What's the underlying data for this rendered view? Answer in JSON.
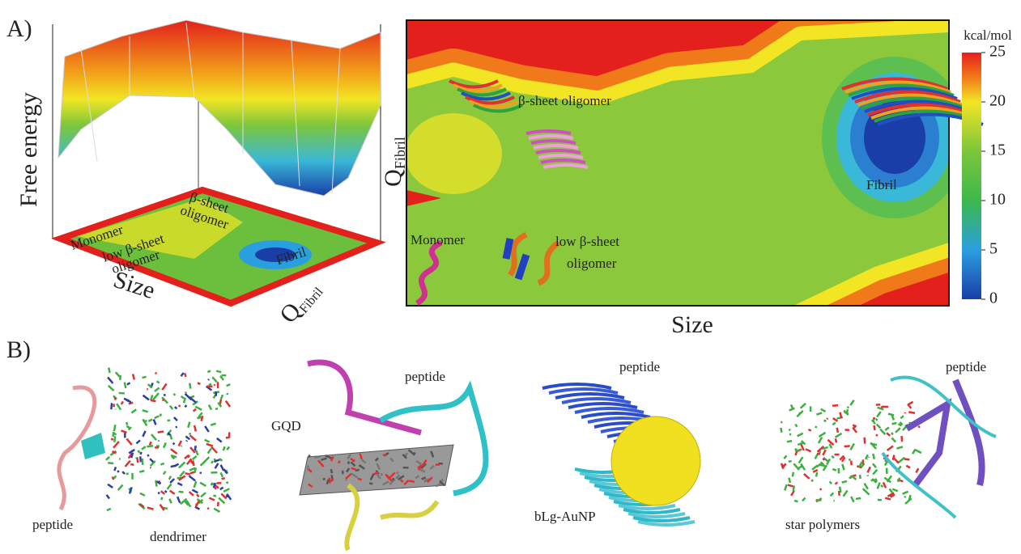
{
  "panel_a": {
    "label": "A)",
    "surface_plot": {
      "y_label": "Free energy",
      "x_label": "Size",
      "z_label": {
        "main": "Q",
        "sub": "Fibril"
      },
      "annotations": [
        "Monomer",
        "low β-sheet",
        "oligomer",
        "β-sheet",
        "oligomer",
        "Fibril"
      ]
    },
    "contour_map": {
      "y_label": {
        "main": "Q",
        "sub": "Fibril"
      },
      "x_label": "Size",
      "annotations": [
        "β-sheet oligomer",
        "Fibril",
        "Monomer",
        "low β-sheet",
        "oligomer"
      ],
      "colorbar": {
        "label": "kcal/mol",
        "lim": [
          0,
          25
        ],
        "ticks": [
          0,
          5,
          10,
          15,
          20,
          25
        ]
      }
    }
  },
  "panel_b": {
    "label": "B)",
    "systems": [
      {
        "labels": [
          "peptide",
          "dendrimer"
        ]
      },
      {
        "labels": [
          "GQD",
          "peptide"
        ]
      },
      {
        "labels": [
          "peptide",
          "bLg-AuNP"
        ]
      },
      {
        "labels": [
          "peptide",
          "star polymers"
        ]
      }
    ]
  }
}
